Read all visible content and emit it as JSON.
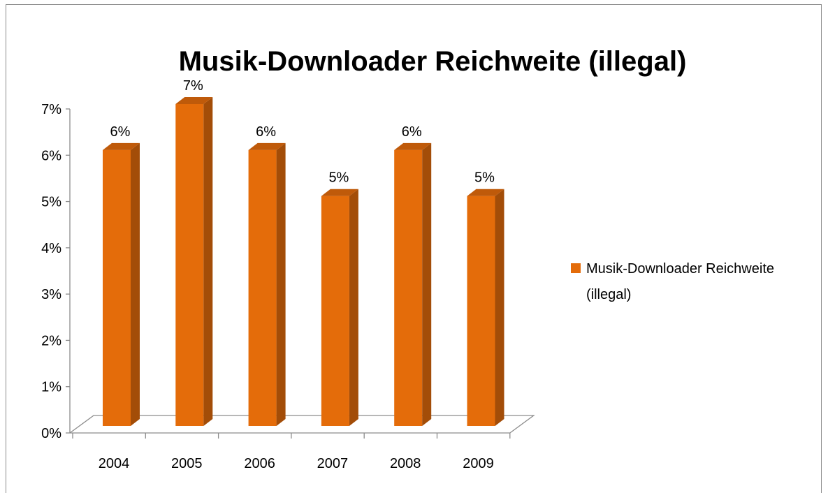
{
  "chart_data": {
    "type": "bar",
    "title": "Musik-Downloader Reichweite (illegal)",
    "xlabel": "",
    "ylabel": "",
    "categories": [
      "2004",
      "2005",
      "2006",
      "2007",
      "2008",
      "2009"
    ],
    "series": [
      {
        "name": "Musik-Downloader Reichweite (illegal)",
        "values": [
          6,
          7,
          6,
          5,
          6,
          5
        ],
        "data_labels": [
          "6%",
          "7%",
          "6%",
          "5%",
          "6%",
          "5%"
        ]
      }
    ],
    "ylim": [
      0,
      7
    ],
    "y_ticks": [
      0,
      1,
      2,
      3,
      4,
      5,
      6,
      7
    ],
    "y_tick_labels": [
      "0%",
      "1%",
      "2%",
      "3%",
      "4%",
      "5%",
      "6%",
      "7%"
    ],
    "grid": false,
    "legend_placement": "right",
    "legend": {
      "label_lines": [
        "Musik-Downloader Reichweite",
        "(illegal)"
      ]
    },
    "colors": {
      "bar_front": "#e46c0a",
      "bar_side": "#a34d08",
      "bar_top": "#bf5a0a",
      "axis": "#8c8c8c"
    }
  }
}
